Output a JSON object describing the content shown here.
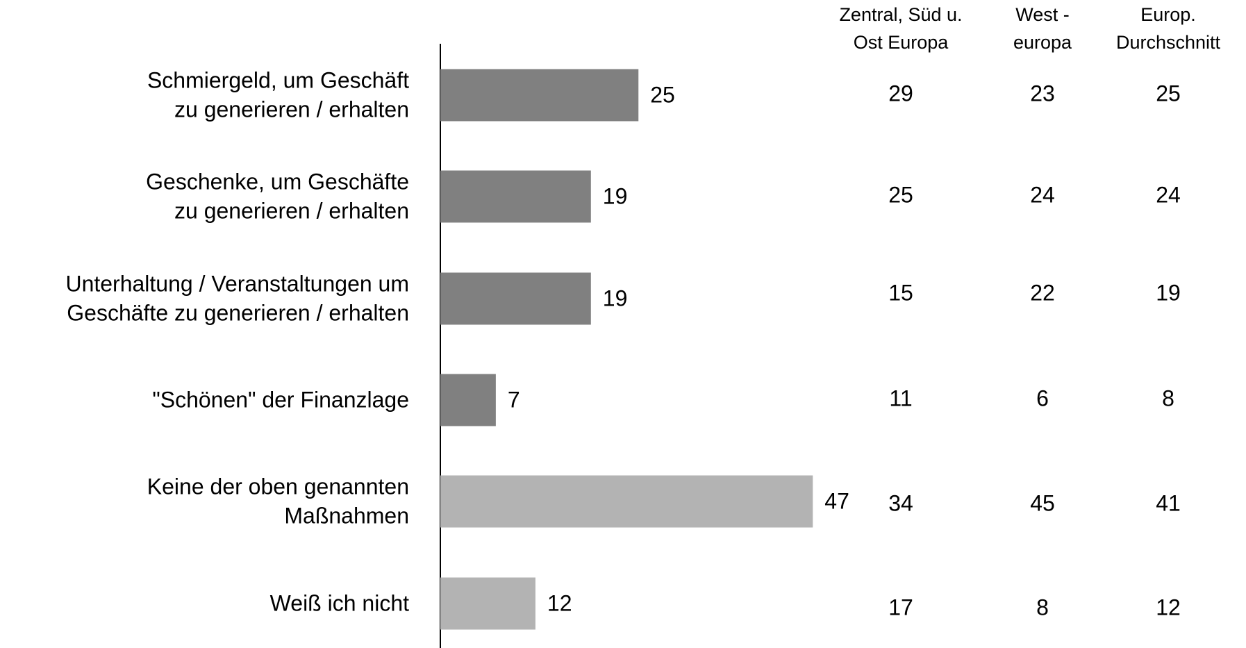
{
  "chart_data": {
    "type": "bar",
    "orientation": "horizontal",
    "categories": [
      [
        "Schmiergeld, um Geschäft",
        "zu generieren / erhalten"
      ],
      [
        "Geschenke, um Geschäfte",
        "zu generieren / erhalten"
      ],
      [
        "Unterhaltung / Veranstaltungen um",
        "Geschäfte zu generieren / erhalten"
      ],
      [
        "\"Schönen\" der Finanzlage"
      ],
      [
        "Keine der oben genannten",
        "Maßnahmen"
      ],
      [
        "Weiß ich nicht"
      ]
    ],
    "values": [
      25,
      19,
      19,
      7,
      47,
      12
    ],
    "colors": [
      "#808080",
      "#808080",
      "#808080",
      "#808080",
      "#b3b3b3",
      "#b3b3b3"
    ],
    "xlim": [
      0,
      100
    ],
    "table": {
      "columns": [
        [
          "Zentral, Süd u.",
          "Ost Europa"
        ],
        [
          "West -",
          "europa"
        ],
        [
          "Europ.",
          "Durchschnitt"
        ]
      ],
      "rows": [
        [
          29,
          23,
          25
        ],
        [
          25,
          24,
          24
        ],
        [
          15,
          22,
          19
        ],
        [
          11,
          6,
          8
        ],
        [
          34,
          45,
          41
        ],
        [
          17,
          8,
          12
        ]
      ]
    }
  }
}
